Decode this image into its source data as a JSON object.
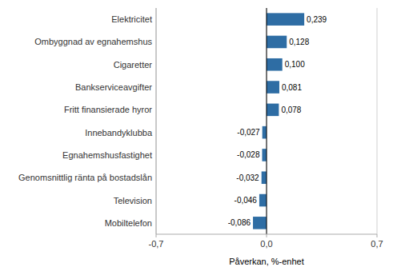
{
  "chart_data": {
    "type": "bar",
    "orientation": "horizontal",
    "xlabel": "Påverkan, %-enhet",
    "categories": [
      "Mobiltelefon",
      "Television",
      "Genomsnittlig ränta på bostadslån",
      "Egnahemshusfastighet",
      "Innebandyklubba",
      "Fritt finansierade hyror",
      "Bankserviceavgifter",
      "Cigaretter",
      "Ombyggnad av egnahemshus",
      "Elektricitet"
    ],
    "values": [
      -0.086,
      -0.046,
      -0.032,
      -0.028,
      -0.027,
      0.078,
      0.081,
      0.1,
      0.128,
      0.239
    ],
    "value_labels": [
      "-0,086",
      "-0,046",
      "-0,032",
      "-0,028",
      "-0,027",
      "0,078",
      "0,081",
      "0,100",
      "0,128",
      "0,239"
    ],
    "color": "#2E6DA4",
    "xlim": [
      -0.7,
      0.7
    ],
    "xticks": [
      {
        "value": -0.7,
        "label": "-0,7"
      },
      {
        "value": 0.0,
        "label": "0,0"
      },
      {
        "value": 0.7,
        "label": "0,7"
      }
    ],
    "grid": true,
    "data_labels": true
  }
}
